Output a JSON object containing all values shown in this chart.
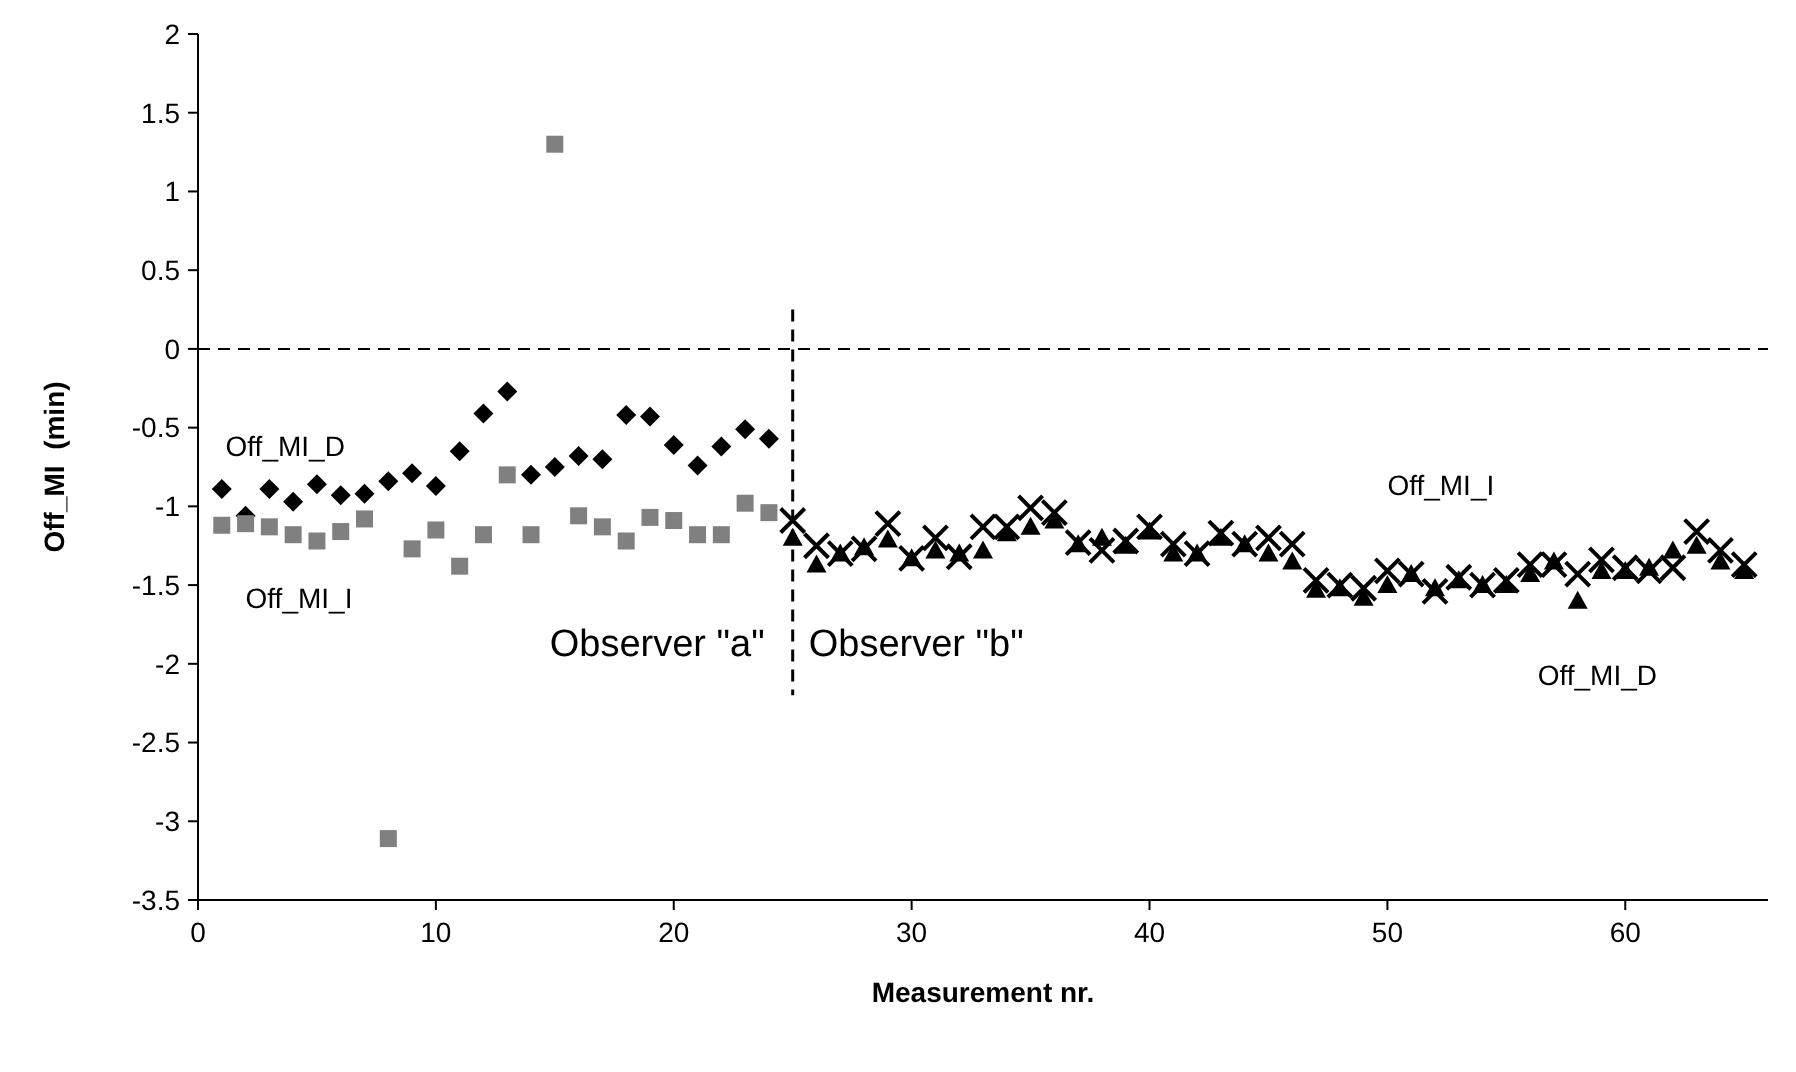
{
  "chart_data": {
    "type": "scatter",
    "xlabel": "Measurement nr.",
    "ylabel": "Off_MI  (min)",
    "xlim": [
      0,
      66
    ],
    "xticks": [
      0,
      10,
      20,
      30,
      40,
      50,
      60
    ],
    "ylim": [
      -3.5,
      2
    ],
    "yticks": [
      2,
      1.5,
      1,
      0.5,
      0,
      -0.5,
      -1,
      -1.5,
      -2,
      -2.5,
      -3,
      -3.5
    ],
    "grid": false,
    "ref_lines": [
      {
        "axis": "y",
        "value": 0,
        "line_style": "dashed"
      },
      {
        "axis": "x",
        "value": 25,
        "line_style": "dashed"
      }
    ],
    "annotations": [
      "Observer \"a\"",
      "Observer \"b\""
    ],
    "series": [
      {
        "name": "Off_MI_D",
        "color": "#000000",
        "marker": "diamond",
        "x": [
          1,
          2,
          3,
          4,
          5,
          6,
          7,
          8,
          9,
          10,
          11,
          12,
          13,
          14,
          15,
          16,
          17,
          18,
          19,
          20,
          21,
          22,
          23,
          24
        ],
        "values": [
          -0.89,
          -1.06,
          -0.89,
          -0.97,
          -0.86,
          -0.93,
          -0.92,
          -0.84,
          -0.79,
          -0.87,
          -0.65,
          -0.41,
          -0.27,
          -0.8,
          -0.75,
          -0.68,
          -0.7,
          -0.42,
          -0.43,
          -0.61,
          -0.74,
          -0.62,
          -0.51,
          -0.57
        ]
      },
      {
        "name": "Off_MI_I",
        "color": "#808080",
        "marker": "square",
        "x": [
          1,
          2,
          3,
          4,
          5,
          6,
          7,
          8,
          9,
          10,
          11,
          12,
          13,
          14,
          15,
          16,
          17,
          18,
          19,
          20,
          21,
          22,
          23,
          24
        ],
        "values": [
          -1.12,
          -1.11,
          -1.13,
          -1.18,
          -1.22,
          -1.16,
          -1.08,
          -3.11,
          -1.27,
          -1.15,
          -1.38,
          -1.18,
          -0.8,
          -1.18,
          1.3,
          -1.06,
          -1.13,
          -1.22,
          -1.07,
          -1.09,
          -1.18,
          -1.18,
          -0.98,
          -1.04
        ]
      },
      {
        "name": "Off_MI_I",
        "color": "#000000",
        "marker": "cross",
        "x": [
          25,
          26,
          27,
          28,
          29,
          30,
          31,
          32,
          33,
          34,
          35,
          36,
          37,
          38,
          39,
          40,
          41,
          42,
          43,
          44,
          45,
          46,
          47,
          48,
          49,
          50,
          51,
          52,
          53,
          54,
          55,
          56,
          57,
          58,
          59,
          60,
          61,
          62,
          63,
          64,
          65
        ],
        "values": [
          -1.09,
          -1.25,
          -1.3,
          -1.27,
          -1.11,
          -1.33,
          -1.2,
          -1.32,
          -1.13,
          -1.13,
          -1.01,
          -1.04,
          -1.23,
          -1.28,
          -1.22,
          -1.13,
          -1.24,
          -1.3,
          -1.17,
          -1.24,
          -1.2,
          -1.24,
          -1.47,
          -1.5,
          -1.52,
          -1.41,
          -1.43,
          -1.54,
          -1.45,
          -1.5,
          -1.47,
          -1.37,
          -1.37,
          -1.43,
          -1.34,
          -1.39,
          -1.41,
          -1.39,
          -1.16,
          -1.28,
          -1.37
        ]
      },
      {
        "name": "Off_MI_D",
        "color": "#000000",
        "marker": "triangle",
        "x": [
          25,
          26,
          27,
          28,
          29,
          30,
          31,
          32,
          33,
          34,
          35,
          36,
          37,
          38,
          39,
          40,
          41,
          42,
          43,
          44,
          45,
          46,
          47,
          48,
          49,
          50,
          51,
          52,
          53,
          54,
          55,
          56,
          57,
          58,
          59,
          60,
          61,
          62,
          63,
          64,
          65
        ],
        "values": [
          -1.2,
          -1.37,
          -1.3,
          -1.26,
          -1.21,
          -1.33,
          -1.28,
          -1.3,
          -1.28,
          -1.17,
          -1.13,
          -1.09,
          -1.24,
          -1.2,
          -1.25,
          -1.16,
          -1.3,
          -1.3,
          -1.2,
          -1.24,
          -1.3,
          -1.35,
          -1.53,
          -1.52,
          -1.58,
          -1.5,
          -1.43,
          -1.52,
          -1.47,
          -1.5,
          -1.5,
          -1.43,
          -1.35,
          -1.6,
          -1.41,
          -1.41,
          -1.39,
          -1.28,
          -1.25,
          -1.35,
          -1.41
        ]
      }
    ]
  }
}
